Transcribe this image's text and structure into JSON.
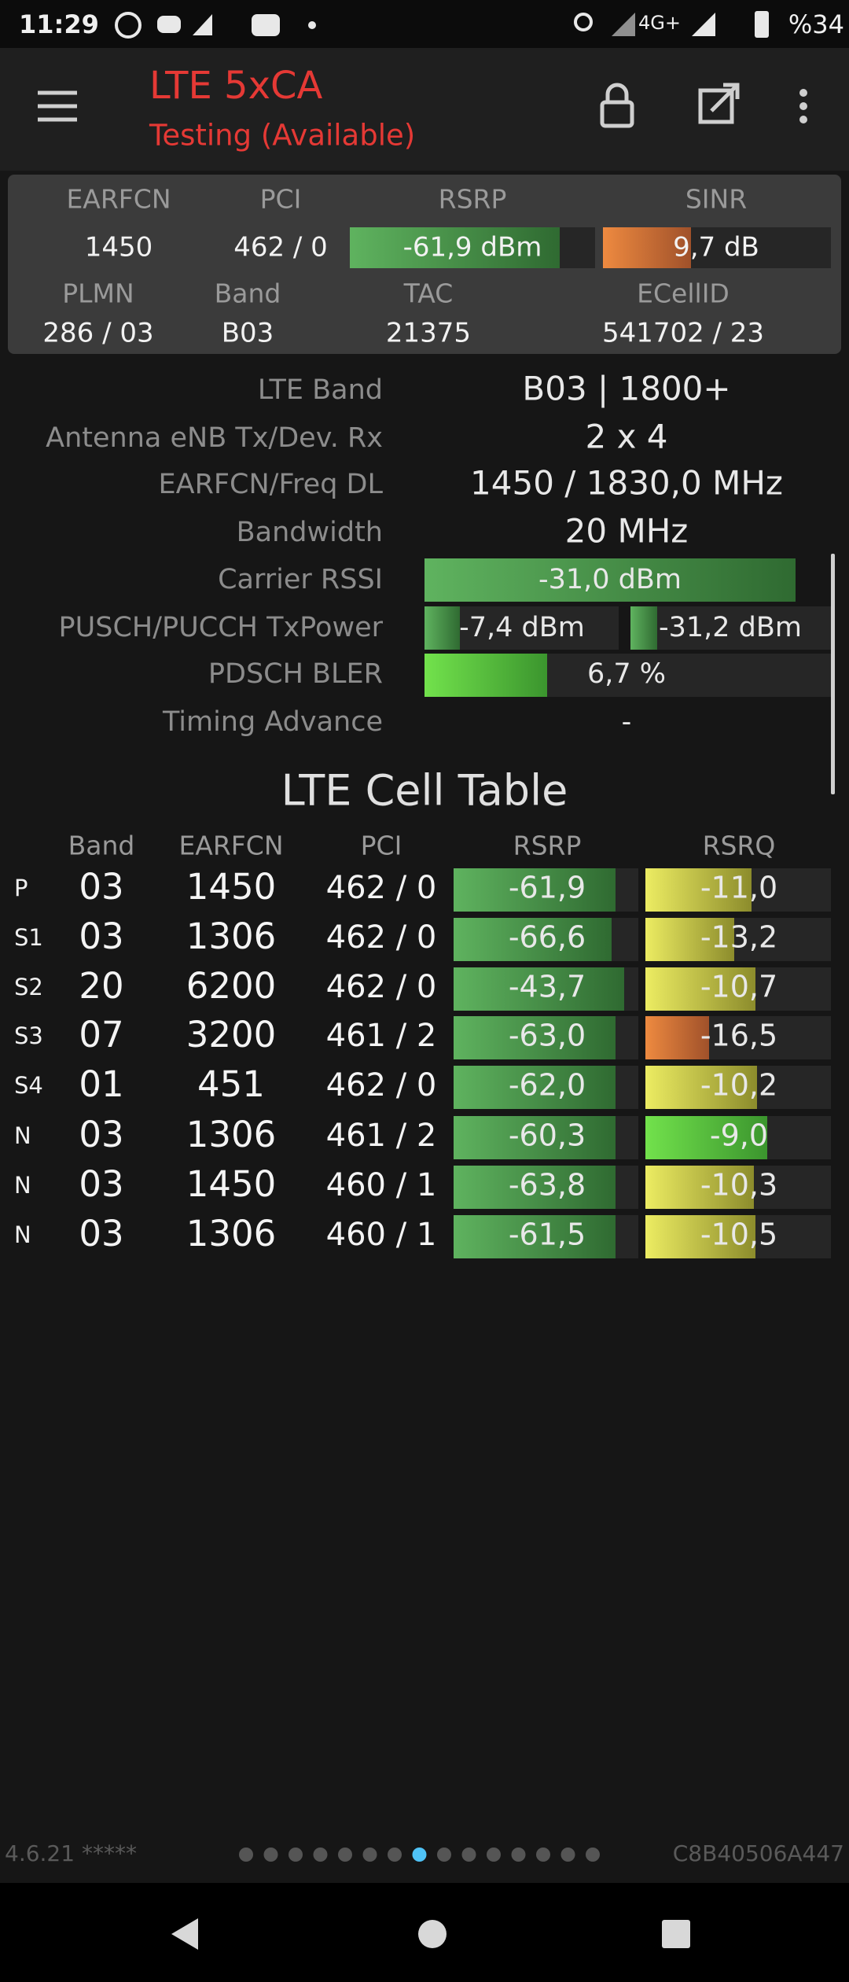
{
  "status_bar": {
    "time": "11:29",
    "network": "4G+",
    "battery": "%34"
  },
  "app_bar": {
    "title": "LTE 5xCA",
    "subtitle": "Testing (Available)"
  },
  "summary": {
    "row1_headers": [
      "EARFCN",
      "PCI",
      "RSRP",
      "SINR"
    ],
    "row1_values": [
      "1450",
      "462 / 0",
      "-61,9 dBm",
      "9,7 dB"
    ],
    "row2_headers": [
      "PLMN",
      "Band",
      "TAC",
      "ECellID"
    ],
    "row2_values": [
      "286 / 03",
      "B03",
      "21375",
      "541702 / 23"
    ]
  },
  "details": [
    {
      "label": "LTE Band",
      "value": "B03 | 1800+"
    },
    {
      "label": "Antenna eNB Tx/Dev. Rx",
      "value": "2 x 4"
    },
    {
      "label": "EARFCN/Freq DL",
      "value": "1450 / 1830,0 MHz"
    },
    {
      "label": "Bandwidth",
      "value": "20 MHz"
    },
    {
      "label": "Carrier RSSI",
      "value": "-31,0 dBm"
    },
    {
      "label": "PUSCH/PUCCH TxPower",
      "value": "-7,4 dBm",
      "value2": "-31,2 dBm"
    },
    {
      "label": "PDSCH BLER",
      "value": "6,7 %"
    },
    {
      "label": "Timing Advance",
      "value": "-"
    }
  ],
  "table": {
    "title": "LTE Cell Table",
    "columns": [
      "Band",
      "EARFCN",
      "PCI",
      "RSRP",
      "RSRQ"
    ],
    "rows": [
      [
        "P",
        "03",
        "1450",
        "462 / 0",
        "-61,9",
        "-11,0"
      ],
      [
        "S1",
        "03",
        "1306",
        "462 / 0",
        "-66,6",
        "-13,2"
      ],
      [
        "S2",
        "20",
        "6200",
        "462 / 0",
        "-43,7",
        "-10,7"
      ],
      [
        "S3",
        "07",
        "3200",
        "461 / 2",
        "-63,0",
        "-16,5"
      ],
      [
        "S4",
        "01",
        "451",
        "462 / 0",
        "-62,0",
        "-10,2"
      ],
      [
        "N",
        "03",
        "1306",
        "461 / 2",
        "-60,3",
        "-9,0"
      ],
      [
        "N",
        "03",
        "1450",
        "460 / 1",
        "-63,8",
        "-10,3"
      ],
      [
        "N",
        "03",
        "1306",
        "460 / 1",
        "-61,5",
        "-10,5"
      ]
    ]
  },
  "footer": {
    "version": "4.6.21 *****",
    "device_id": "C8B40506A447"
  }
}
